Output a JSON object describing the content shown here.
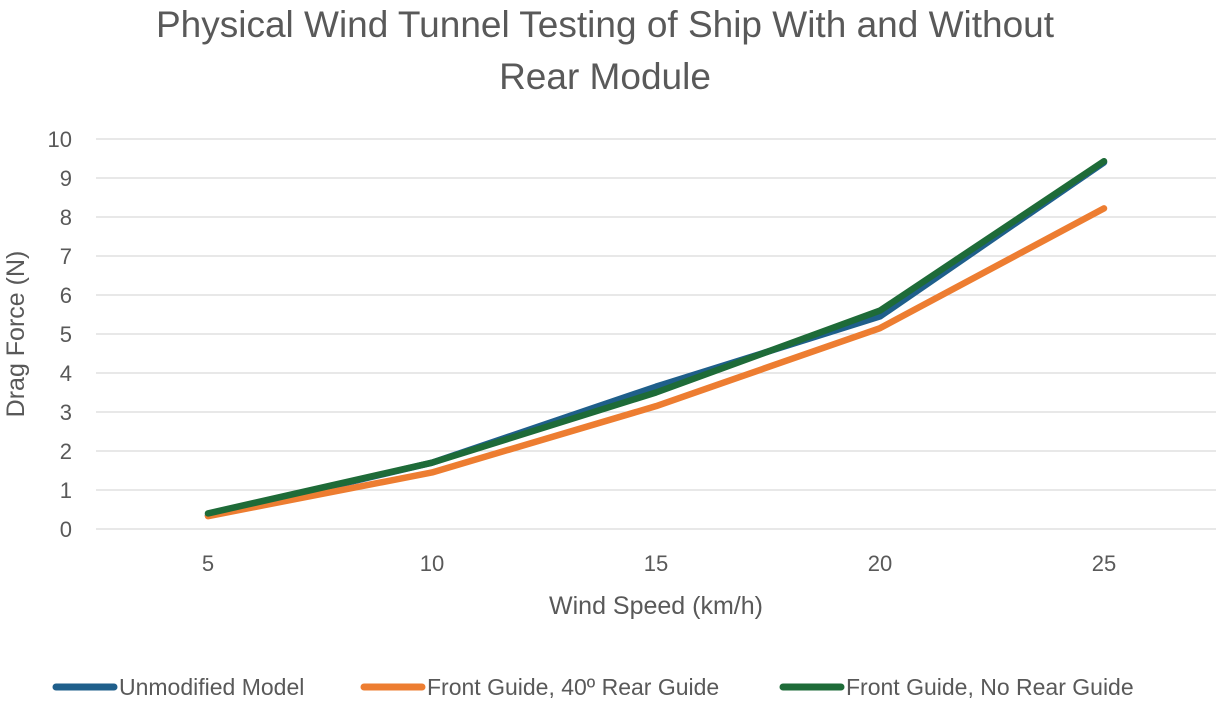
{
  "chart_data": {
    "type": "line",
    "title": [
      "Physical Wind Tunnel Testing of Ship With and Without",
      "Rear Module"
    ],
    "xlabel": "Wind Speed (km/h)",
    "ylabel": "Drag Force (N)",
    "categories": [
      "5",
      "10",
      "15",
      "20",
      "25"
    ],
    "ylim": [
      0,
      10
    ],
    "yticks": [
      "0",
      "1",
      "2",
      "3",
      "4",
      "5",
      "6",
      "7",
      "8",
      "9",
      "10"
    ],
    "grid": true,
    "legend_position": "bottom",
    "series": [
      {
        "name": "Unmodified Model",
        "color": "#1f5f8b",
        "values": [
          0.35,
          1.7,
          3.65,
          5.45,
          9.4
        ]
      },
      {
        "name": "Front Guide, 40º Rear Guide",
        "color": "#ed7d31",
        "values": [
          0.33,
          1.45,
          3.15,
          5.15,
          8.22
        ]
      },
      {
        "name": "Front Guide, No Rear Guide",
        "color": "#1e6b38",
        "values": [
          0.4,
          1.7,
          3.5,
          5.6,
          9.43
        ]
      }
    ]
  }
}
